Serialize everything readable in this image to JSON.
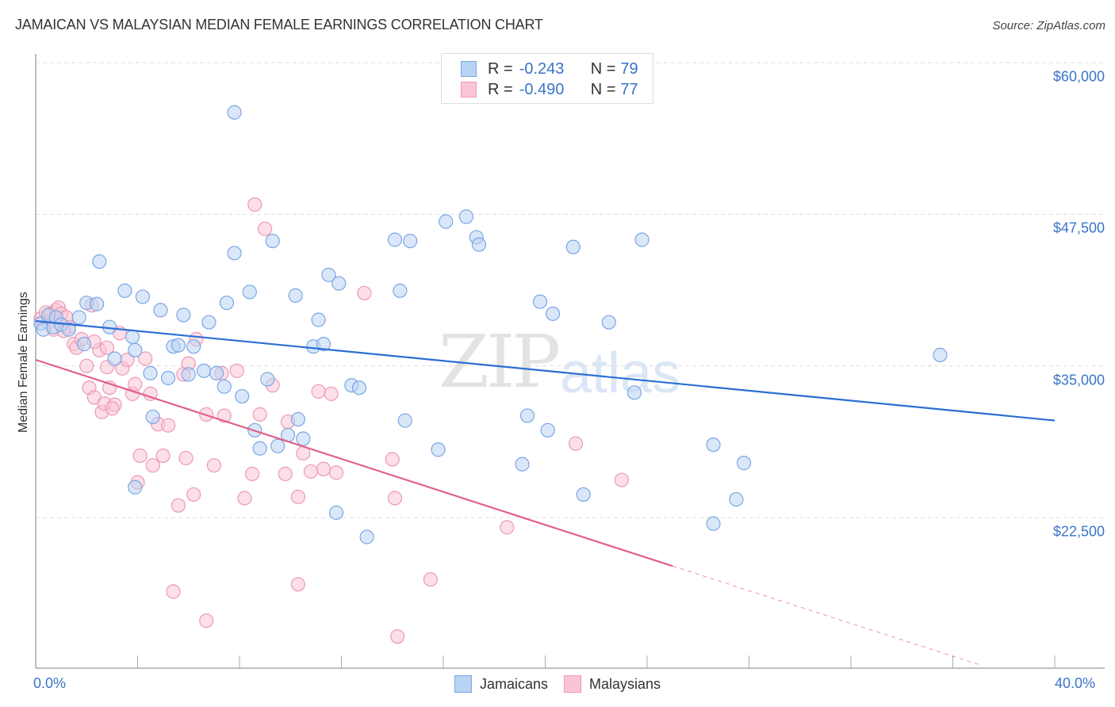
{
  "header": {
    "title": "JAMAICAN VS MALAYSIAN MEDIAN FEMALE EARNINGS CORRELATION CHART",
    "source": "Source: ZipAtlas.com"
  },
  "legend_top": [
    {
      "r_label": "R =",
      "r_value": "-0.243",
      "n_label": "N =",
      "n_value": "79",
      "fill": "#b9d3f4",
      "stroke": "#7ba7e3"
    },
    {
      "r_label": "R =",
      "r_value": "-0.490",
      "n_label": "N =",
      "n_value": "77",
      "fill": "#f9c5d5",
      "stroke": "#ec9ab4"
    }
  ],
  "legend_bottom": [
    {
      "label": "Jamaicans",
      "fill": "#b9d3f4",
      "stroke": "#7ba7e3"
    },
    {
      "label": "Malaysians",
      "fill": "#f9c5d5",
      "stroke": "#ec9ab4"
    }
  ],
  "axes": {
    "ylabel": "Median Female Earnings",
    "y_ticks": [
      {
        "label": "$60,000",
        "value": 60000
      },
      {
        "label": "$47,500",
        "value": 47500
      },
      {
        "label": "$35,000",
        "value": 35000
      },
      {
        "label": "$22,500",
        "value": 22500
      }
    ],
    "x_ticks": [
      {
        "label": "0.0%",
        "value": 0
      },
      {
        "label": "40.0%",
        "value": 40
      }
    ]
  },
  "watermark": {
    "zip": "ZIP",
    "atlas": "atlas"
  },
  "colors": {
    "jamaican_line": "#2a6fd4",
    "malaysian_line": "#e2608a",
    "tick_text": "#3a74c9",
    "grid": "#dddddd"
  },
  "chart_data": {
    "type": "scatter",
    "title": "JAMAICAN VS MALAYSIAN MEDIAN FEMALE EARNINGS CORRELATION CHART",
    "xlabel": "",
    "ylabel": "Median Female Earnings",
    "xlim": [
      0,
      40
    ],
    "ylim": [
      11000,
      61000
    ],
    "grid": true,
    "legend_position": "top-center and bottom",
    "series": [
      {
        "name": "Jamaicans",
        "R": -0.243,
        "N": 79,
        "trend": {
          "x": [
            0,
            40
          ],
          "y": [
            38700,
            30500
          ]
        },
        "points": [
          [
            0.2,
            38500
          ],
          [
            0.3,
            38000
          ],
          [
            0.5,
            39200
          ],
          [
            0.7,
            38200
          ],
          [
            0.8,
            39000
          ],
          [
            1.0,
            38400
          ],
          [
            1.3,
            38000
          ],
          [
            1.7,
            39000
          ],
          [
            1.9,
            36800
          ],
          [
            2.0,
            40200
          ],
          [
            2.4,
            40100
          ],
          [
            2.5,
            43600
          ],
          [
            2.9,
            38200
          ],
          [
            3.1,
            35600
          ],
          [
            3.5,
            41200
          ],
          [
            3.8,
            37400
          ],
          [
            3.9,
            36300
          ],
          [
            4.2,
            40700
          ],
          [
            4.5,
            34400
          ],
          [
            4.6,
            30800
          ],
          [
            4.9,
            39600
          ],
          [
            5.2,
            34000
          ],
          [
            5.4,
            36600
          ],
          [
            5.6,
            36700
          ],
          [
            5.8,
            39200
          ],
          [
            6.0,
            34300
          ],
          [
            6.2,
            36600
          ],
          [
            6.6,
            34600
          ],
          [
            6.8,
            38600
          ],
          [
            7.1,
            34400
          ],
          [
            7.4,
            33300
          ],
          [
            7.5,
            40200
          ],
          [
            7.8,
            44300
          ],
          [
            7.8,
            55900
          ],
          [
            8.1,
            32500
          ],
          [
            8.4,
            41100
          ],
          [
            8.6,
            29700
          ],
          [
            8.8,
            28200
          ],
          [
            9.1,
            33900
          ],
          [
            9.3,
            45300
          ],
          [
            9.5,
            28400
          ],
          [
            9.9,
            29300
          ],
          [
            10.2,
            40800
          ],
          [
            10.3,
            30600
          ],
          [
            10.5,
            29000
          ],
          [
            10.9,
            36600
          ],
          [
            11.1,
            38800
          ],
          [
            11.3,
            36800
          ],
          [
            11.5,
            42500
          ],
          [
            11.8,
            22900
          ],
          [
            11.9,
            41800
          ],
          [
            12.4,
            33400
          ],
          [
            12.7,
            33200
          ],
          [
            13.0,
            20900
          ],
          [
            14.1,
            45400
          ],
          [
            14.3,
            41200
          ],
          [
            14.5,
            30500
          ],
          [
            14.7,
            45300
          ],
          [
            15.8,
            28100
          ],
          [
            16.1,
            46900
          ],
          [
            16.9,
            47300
          ],
          [
            17.3,
            45600
          ],
          [
            17.4,
            45000
          ],
          [
            19.1,
            26900
          ],
          [
            19.3,
            30900
          ],
          [
            19.8,
            40300
          ],
          [
            20.1,
            29700
          ],
          [
            20.3,
            39300
          ],
          [
            21.1,
            44800
          ],
          [
            21.5,
            24400
          ],
          [
            22.5,
            38600
          ],
          [
            23.5,
            32800
          ],
          [
            23.8,
            45400
          ],
          [
            26.6,
            28500
          ],
          [
            26.6,
            22000
          ],
          [
            27.5,
            24000
          ],
          [
            27.8,
            27000
          ],
          [
            35.5,
            35900
          ],
          [
            3.9,
            25000
          ]
        ]
      },
      {
        "name": "Malaysians",
        "R": -0.49,
        "N": 77,
        "trend": {
          "x": [
            0,
            25
          ],
          "y": [
            35500,
            18500
          ]
        },
        "trend_dashed": {
          "x": [
            25,
            37
          ],
          "y": [
            18500,
            10400
          ]
        },
        "points": [
          [
            0.2,
            38900
          ],
          [
            0.4,
            39400
          ],
          [
            0.5,
            38600
          ],
          [
            0.6,
            39300
          ],
          [
            0.8,
            39600
          ],
          [
            0.9,
            39800
          ],
          [
            1.0,
            39300
          ],
          [
            1.2,
            39000
          ],
          [
            1.3,
            38200
          ],
          [
            1.5,
            36800
          ],
          [
            1.6,
            36500
          ],
          [
            1.8,
            37200
          ],
          [
            2.0,
            35000
          ],
          [
            2.1,
            33200
          ],
          [
            2.2,
            40000
          ],
          [
            2.3,
            32400
          ],
          [
            2.5,
            36300
          ],
          [
            2.6,
            31200
          ],
          [
            2.7,
            31900
          ],
          [
            2.8,
            34900
          ],
          [
            2.8,
            36500
          ],
          [
            2.9,
            33200
          ],
          [
            3.1,
            31800
          ],
          [
            3.3,
            37700
          ],
          [
            3.4,
            34800
          ],
          [
            3.6,
            35500
          ],
          [
            3.8,
            32700
          ],
          [
            3.9,
            33500
          ],
          [
            4.0,
            25400
          ],
          [
            4.1,
            27600
          ],
          [
            4.3,
            35600
          ],
          [
            4.5,
            32700
          ],
          [
            4.6,
            26800
          ],
          [
            4.8,
            30200
          ],
          [
            5.0,
            27600
          ],
          [
            5.2,
            30100
          ],
          [
            5.4,
            16400
          ],
          [
            5.6,
            23500
          ],
          [
            5.8,
            34300
          ],
          [
            5.9,
            27400
          ],
          [
            6.0,
            35200
          ],
          [
            6.2,
            24400
          ],
          [
            6.3,
            37200
          ],
          [
            6.7,
            31000
          ],
          [
            6.7,
            14000
          ],
          [
            7.0,
            26800
          ],
          [
            7.3,
            34400
          ],
          [
            7.4,
            30900
          ],
          [
            7.9,
            34600
          ],
          [
            8.2,
            24100
          ],
          [
            8.5,
            26100
          ],
          [
            8.6,
            48300
          ],
          [
            8.8,
            31000
          ],
          [
            9.0,
            46300
          ],
          [
            9.3,
            33400
          ],
          [
            9.8,
            26100
          ],
          [
            9.9,
            30400
          ],
          [
            10.3,
            17000
          ],
          [
            10.3,
            24200
          ],
          [
            10.5,
            27800
          ],
          [
            10.8,
            26300
          ],
          [
            11.1,
            32900
          ],
          [
            11.3,
            26500
          ],
          [
            11.6,
            32700
          ],
          [
            11.8,
            26200
          ],
          [
            12.9,
            41000
          ],
          [
            14.0,
            27300
          ],
          [
            14.1,
            24100
          ],
          [
            14.2,
            12700
          ],
          [
            15.5,
            17400
          ],
          [
            18.5,
            21700
          ],
          [
            21.2,
            28600
          ],
          [
            23.0,
            25600
          ],
          [
            0.7,
            38000
          ],
          [
            1.1,
            37900
          ],
          [
            2.3,
            37000
          ],
          [
            3.0,
            31500
          ]
        ]
      }
    ]
  }
}
